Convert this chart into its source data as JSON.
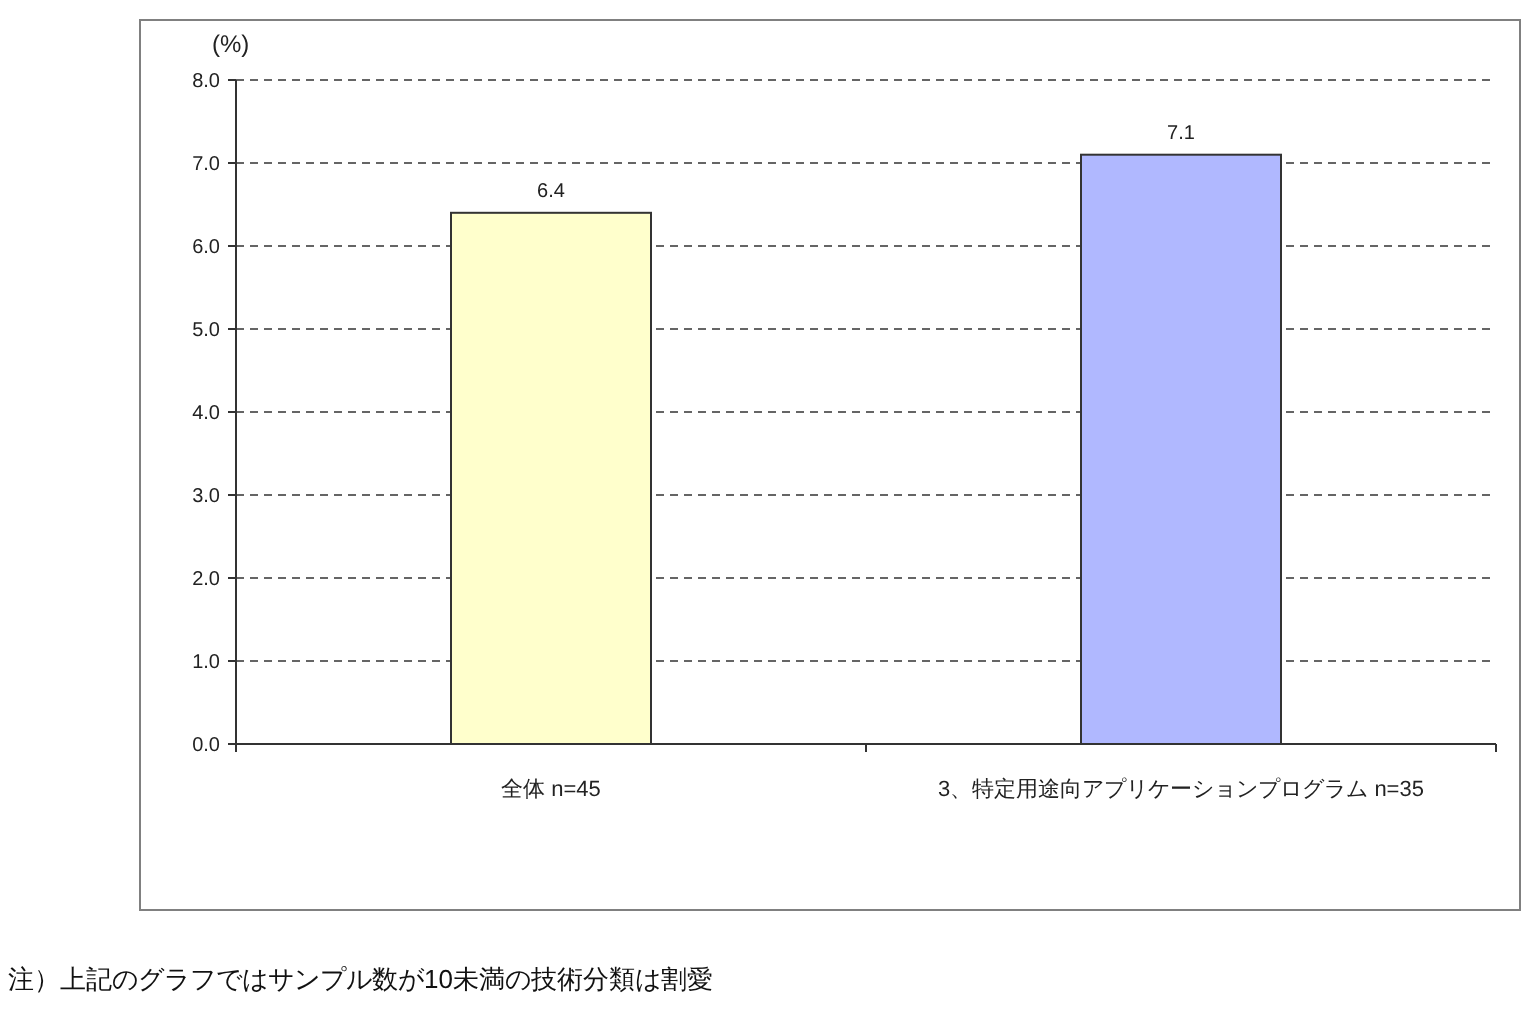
{
  "chart_data": {
    "type": "bar",
    "ylabel": "(%)",
    "categories": [
      "全体 n=45",
      "3、特定用途向アプリケーションプログラム n=35"
    ],
    "values": [
      6.4,
      7.1
    ],
    "colors": [
      "#ffffcc",
      "#b0b8ff"
    ],
    "data_labels": true,
    "ylim": [
      0,
      8
    ],
    "yticks": [
      {
        "value": 0,
        "label": "0.0"
      },
      {
        "value": 1,
        "label": "1.0"
      },
      {
        "value": 2,
        "label": "2.0"
      },
      {
        "value": 3,
        "label": "3.0"
      },
      {
        "value": 4,
        "label": "4.0"
      },
      {
        "value": 5,
        "label": "5.0"
      },
      {
        "value": 6,
        "label": "6.0"
      },
      {
        "value": 7,
        "label": "7.0"
      },
      {
        "value": 8,
        "label": "8.0"
      }
    ],
    "grid": "y",
    "annotations": [
      "注）上記のグラフではサンプル数が10未満の技術分類は割愛"
    ]
  }
}
